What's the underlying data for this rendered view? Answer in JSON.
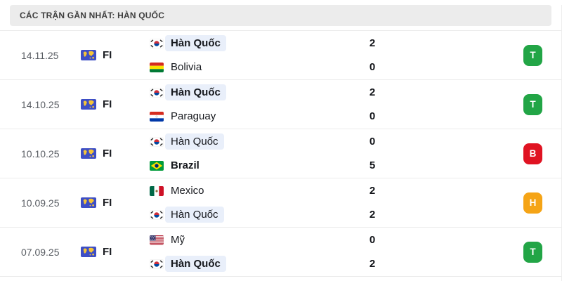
{
  "header": {
    "title": "CÁC TRẬN GẦN NHẤT: HÀN QUỐC"
  },
  "colors": {
    "win_badge": "#22A546",
    "loss_badge": "#E01322",
    "draw_badge": "#F5A416",
    "team_highlight": "#E9EFFA",
    "header_bg": "#ECECEC"
  },
  "result_labels": {
    "win": "T",
    "loss": "B",
    "draw": "H"
  },
  "matches": [
    {
      "date": "14.11.25",
      "competition": "FI",
      "result": "T",
      "home": {
        "name": "Hàn Quốc",
        "flag": "kr",
        "score": "2",
        "bold": true,
        "highlighted": true
      },
      "away": {
        "name": "Bolivia",
        "flag": "bo",
        "score": "0",
        "bold": false,
        "highlighted": false
      }
    },
    {
      "date": "14.10.25",
      "competition": "FI",
      "result": "T",
      "home": {
        "name": "Hàn Quốc",
        "flag": "kr",
        "score": "2",
        "bold": true,
        "highlighted": true
      },
      "away": {
        "name": "Paraguay",
        "flag": "py",
        "score": "0",
        "bold": false,
        "highlighted": false
      }
    },
    {
      "date": "10.10.25",
      "competition": "FI",
      "result": "B",
      "home": {
        "name": "Hàn Quốc",
        "flag": "kr",
        "score": "0",
        "bold": false,
        "highlighted": true
      },
      "away": {
        "name": "Brazil",
        "flag": "br",
        "score": "5",
        "bold": true,
        "highlighted": false
      }
    },
    {
      "date": "10.09.25",
      "competition": "FI",
      "result": "H",
      "home": {
        "name": "Mexico",
        "flag": "mx",
        "score": "2",
        "bold": false,
        "highlighted": false
      },
      "away": {
        "name": "Hàn Quốc",
        "flag": "kr",
        "score": "2",
        "bold": false,
        "highlighted": true
      }
    },
    {
      "date": "07.09.25",
      "competition": "FI",
      "result": "T",
      "home": {
        "name": "Mỹ",
        "flag": "us",
        "score": "0",
        "bold": false,
        "highlighted": false
      },
      "away": {
        "name": "Hàn Quốc",
        "flag": "kr",
        "score": "2",
        "bold": true,
        "highlighted": true
      }
    }
  ]
}
